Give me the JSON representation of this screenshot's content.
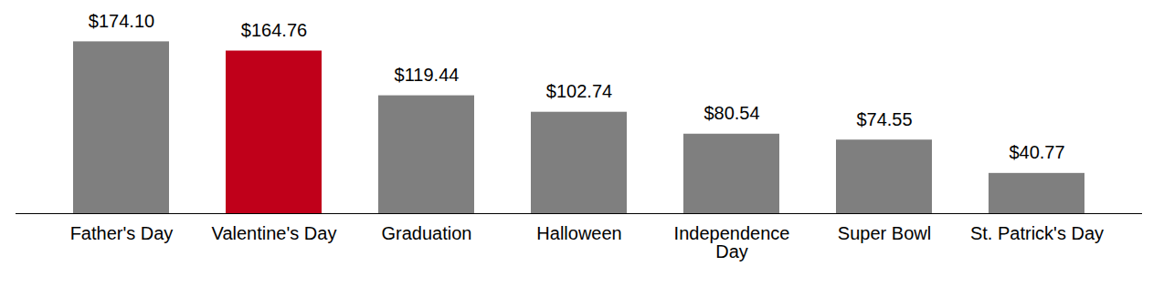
{
  "chart_data": {
    "type": "bar",
    "categories": [
      "Father's Day",
      "Valentine's Day",
      "Graduation",
      "Halloween",
      "Independence Day",
      "Super Bowl",
      "St. Patrick's Day"
    ],
    "values": [
      174.1,
      164.76,
      119.44,
      102.74,
      80.54,
      74.55,
      40.77
    ],
    "value_labels": [
      "$174.10",
      "$164.76",
      "$119.44",
      "$102.74",
      "$80.54",
      "$74.55",
      "$40.77"
    ],
    "colors": [
      "#7f7f7f",
      "#c0001a",
      "#7f7f7f",
      "#7f7f7f",
      "#7f7f7f",
      "#7f7f7f",
      "#7f7f7f"
    ],
    "ylim": [
      0,
      180
    ],
    "data_labels": true,
    "tick_labels": "x",
    "grid": false
  }
}
